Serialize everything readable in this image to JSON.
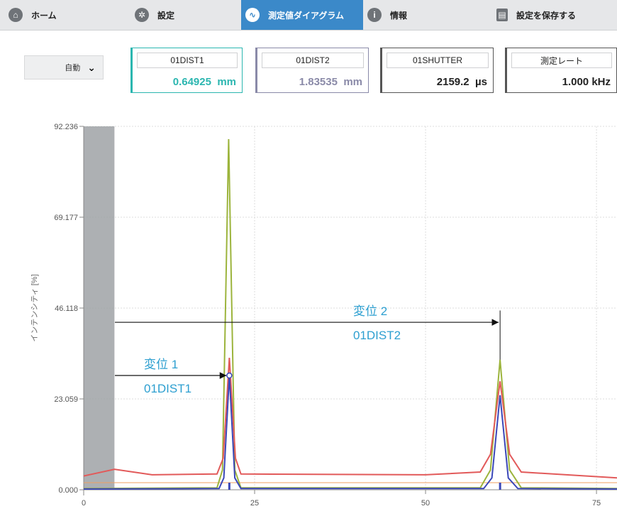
{
  "nav": {
    "items": [
      {
        "label": "ホーム",
        "icon": "home-icon"
      },
      {
        "label": "設定",
        "icon": "gear-icon"
      },
      {
        "label": "測定値ダイアグラム",
        "icon": "waveform-icon",
        "active": true
      },
      {
        "label": "情報",
        "icon": "info-icon"
      },
      {
        "label": "設定を保存する",
        "icon": "save-icon"
      }
    ]
  },
  "toolbar": {
    "mode": "自動",
    "measurements": [
      {
        "label": "01DIST1",
        "value": "0.64925",
        "unit": "mm",
        "color": "#2bb6b0"
      },
      {
        "label": "01DIST2",
        "value": "1.83535",
        "unit": "mm",
        "color": "#8a8aa8"
      },
      {
        "label": "01SHUTTER",
        "value": "2159.2",
        "unit": "µs",
        "color": "#222222"
      },
      {
        "label": "測定レート",
        "value": "1.000 kHz",
        "unit": "",
        "color": "#222222"
      }
    ]
  },
  "chart_data": {
    "type": "line",
    "ylabel": "インテンシティ [%]",
    "xlim": [
      0,
      78
    ],
    "ylim": [
      0,
      92.236
    ],
    "yticks": [
      "0.000",
      "23.059",
      "46.118",
      "69.177",
      "92.236"
    ],
    "xticks": [
      "0",
      "25",
      "50",
      "75"
    ],
    "grid": true,
    "masked_region": [
      0,
      4.5
    ],
    "threshold_level": 1.8,
    "series": [
      {
        "color": "#9cb43c",
        "values": [
          [
            0,
            0.3
          ],
          [
            19.5,
            0.5
          ],
          [
            20.3,
            5
          ],
          [
            21.2,
            89
          ],
          [
            22.1,
            5
          ],
          [
            23,
            0.5
          ],
          [
            58,
            0.5
          ],
          [
            59.5,
            5
          ],
          [
            60.9,
            33
          ],
          [
            62.3,
            5
          ],
          [
            64,
            0.5
          ],
          [
            78,
            0.3
          ]
        ]
      },
      {
        "color": "#e25a5a",
        "values": [
          [
            0,
            3.5
          ],
          [
            4.5,
            5.2
          ],
          [
            10,
            3.8
          ],
          [
            19.5,
            4
          ],
          [
            20.4,
            8
          ],
          [
            21.3,
            33.5
          ],
          [
            22.2,
            8
          ],
          [
            23,
            4
          ],
          [
            50,
            3.8
          ],
          [
            58,
            4.5
          ],
          [
            59.5,
            9
          ],
          [
            60.9,
            27.5
          ],
          [
            62.3,
            9
          ],
          [
            64,
            4.5
          ],
          [
            78,
            3
          ]
        ]
      },
      {
        "color": "#3a47b8",
        "values": [
          [
            0,
            0.2
          ],
          [
            19.8,
            0.3
          ],
          [
            20.5,
            3
          ],
          [
            21.3,
            29
          ],
          [
            22.1,
            3
          ],
          [
            23,
            0.3
          ],
          [
            58.5,
            0.3
          ],
          [
            59.7,
            3
          ],
          [
            60.9,
            24
          ],
          [
            62.1,
            3
          ],
          [
            63.5,
            0.3
          ],
          [
            78,
            0.2
          ]
        ]
      }
    ],
    "annotations": [
      {
        "name": "変位 1",
        "sub": "01DIST1",
        "x": 21.3
      },
      {
        "name": "変位 2",
        "sub": "01DIST2",
        "x": 60.9
      }
    ]
  }
}
